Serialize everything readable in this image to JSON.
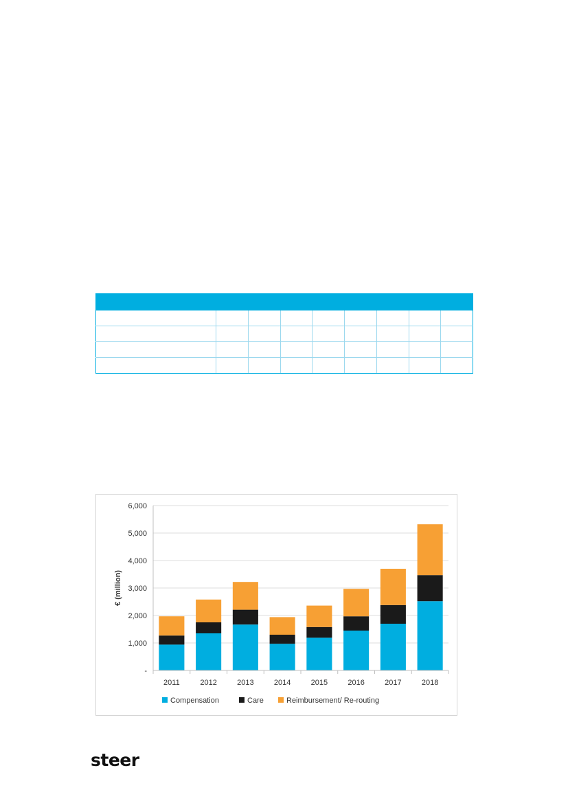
{
  "logo": {
    "text": "steer"
  },
  "chart_data": {
    "type": "bar",
    "stacked": true,
    "categories": [
      "2011",
      "2012",
      "2013",
      "2014",
      "2015",
      "2016",
      "2017",
      "2018"
    ],
    "series": [
      {
        "name": "Compensation",
        "values": [
          940,
          1350,
          1670,
          970,
          1190,
          1450,
          1700,
          2520
        ],
        "color": "#00aee0"
      },
      {
        "name": "Care",
        "values": [
          330,
          400,
          540,
          330,
          390,
          520,
          680,
          950
        ],
        "color": "#1a1a1a"
      },
      {
        "name": "Reimbursement/ Re-routing",
        "values": [
          700,
          830,
          1010,
          640,
          780,
          1000,
          1320,
          1850
        ],
        "color": "#f7a034"
      }
    ],
    "ylabel": "€ (million)",
    "ylim": [
      0,
      6000
    ],
    "yticks": [
      0,
      1000,
      2000,
      3000,
      4000,
      5000,
      6000
    ],
    "ytick_labels": [
      "-",
      "1,000",
      "2,000",
      "3,000",
      "4,000",
      "5,000",
      "6,000"
    ],
    "grid": true,
    "legend_position": "bottom"
  }
}
